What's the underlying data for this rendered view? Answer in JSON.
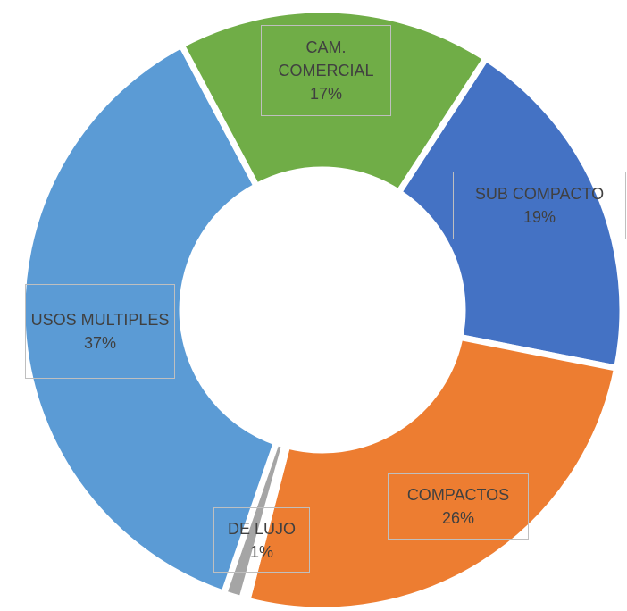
{
  "chart_data": {
    "type": "donut",
    "categories": [
      "SUB COMPACTO",
      "COMPACTOS",
      null,
      "DE LUJO",
      "USOS MULTIPLES",
      "CAM. COMERCIAL"
    ],
    "values": [
      19,
      26,
      0.3,
      1,
      37,
      17
    ],
    "value_labels": [
      "19%",
      "26%",
      null,
      "1%",
      "37%",
      "17%"
    ],
    "colors": [
      "#4472c4",
      "#ed7d31",
      "#ffc000",
      "#a5a5a5",
      "#5b9bd5",
      "#70ad47"
    ],
    "start_angle": 33
  }
}
